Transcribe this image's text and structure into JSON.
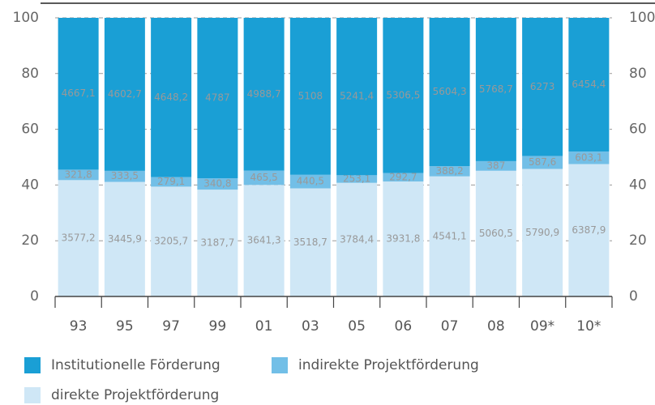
{
  "chart_data": {
    "type": "stacked_percent",
    "categories": [
      "93",
      "95",
      "97",
      "99",
      "01",
      "03",
      "05",
      "06",
      "07",
      "08",
      "09*",
      "10*"
    ],
    "series": [
      {
        "name": "direkte Projektförderung",
        "color": "#cfe7f6",
        "values": [
          3577.2,
          3445.9,
          3205.7,
          3187.7,
          3641.3,
          3518.7,
          3784.4,
          3931.8,
          4541.1,
          5060.5,
          5790.9,
          6387.9
        ],
        "value_labels": [
          "3577,2",
          "3445,9",
          "3205,7",
          "3187,7",
          "3641,3",
          "3518,7",
          "3784,4",
          "3931,8",
          "4541,1",
          "5060,5",
          "5790,9",
          "6387,9"
        ]
      },
      {
        "name": "indirekte Projektförderung",
        "color": "#72bfe7",
        "values": [
          321.8,
          333.5,
          279.1,
          340.8,
          465.5,
          440.5,
          253.1,
          292.7,
          388.2,
          387,
          587.6,
          603.1
        ],
        "value_labels": [
          "321,8",
          "333,5",
          "279,1",
          "340,8",
          "465,5",
          "440,5",
          "253,1",
          "292,7",
          "388,2",
          "387",
          "587,6",
          "603,1"
        ]
      },
      {
        "name": "Institutionelle Förderung",
        "color": "#1a9fd5",
        "values": [
          4667.1,
          4602.7,
          4648.2,
          4787,
          4988.7,
          5108,
          5241.4,
          5306.5,
          5604.3,
          5768.7,
          6273,
          6454.4
        ],
        "value_labels": [
          "4667,1",
          "4602,7",
          "4648,2",
          "4787",
          "4988,7",
          "5108",
          "5241,4",
          "5306,5",
          "5604,3",
          "5768,7",
          "6273",
          "6454,4"
        ]
      }
    ],
    "ylim": [
      0,
      100
    ],
    "yticks": [
      0,
      20,
      40,
      60,
      80,
      100
    ],
    "grid": true
  }
}
